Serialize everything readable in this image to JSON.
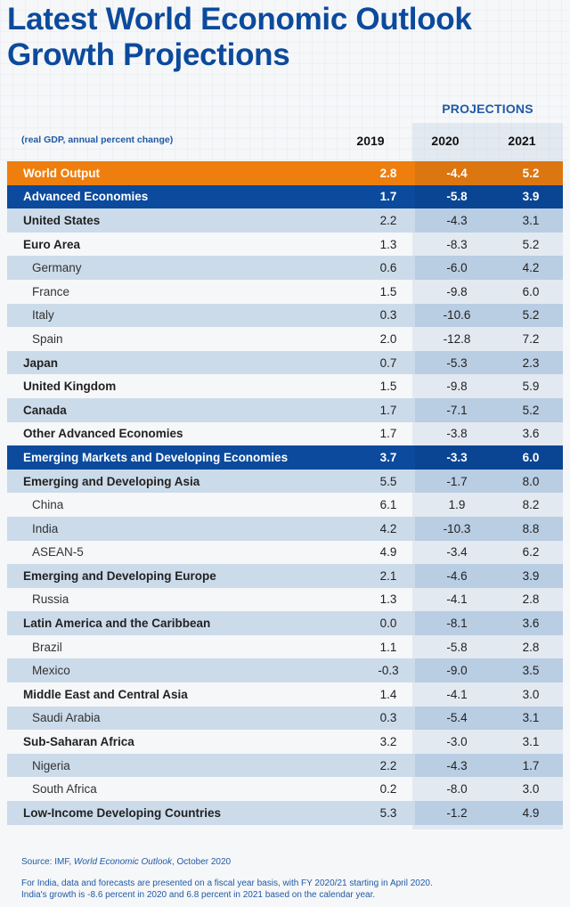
{
  "title_line1": "Latest World Economic Outlook",
  "title_line2": "Growth Projections",
  "projections_label": "PROJECTIONS",
  "units_label": "(real GDP, annual percent change)",
  "years": [
    "2019",
    "2020",
    "2021"
  ],
  "colors": {
    "orange": "#ee7f0e",
    "blue": "#0b4a9c",
    "band": "#ccdbea",
    "title": "#0b4a9c"
  },
  "footer": {
    "source_prefix": "Source: IMF, ",
    "source_title": "World Economic Outlook",
    "source_suffix": ", October 2020",
    "note_line1": "For India, data and forecasts are presented on a fiscal year basis, with FY 2020/21 starting in April 2020.",
    "note_line2": "India's growth is -8.6 percent in 2020 and 6.8 percent in 2021 based on the calendar year."
  },
  "chart_data": {
    "type": "table",
    "title": "Latest World Economic Outlook Growth Projections",
    "subtitle": "(real GDP, annual percent change)",
    "columns": [
      "",
      "2019",
      "2020",
      "2021"
    ],
    "column_group": {
      "label": "PROJECTIONS",
      "columns": [
        "2020",
        "2021"
      ]
    },
    "rows": [
      {
        "name": "World Output",
        "style": "orange",
        "values": [
          "2.8",
          "-4.4",
          "5.2"
        ]
      },
      {
        "name": "Advanced Economies",
        "style": "blue",
        "values": [
          "1.7",
          "-5.8",
          "3.9"
        ]
      },
      {
        "name": "United States",
        "style": "bold",
        "values": [
          "2.2",
          "-4.3",
          "3.1"
        ]
      },
      {
        "name": "Euro Area",
        "style": "bold",
        "values": [
          "1.3",
          "-8.3",
          "5.2"
        ]
      },
      {
        "name": "Germany",
        "style": "indent",
        "values": [
          "0.6",
          "-6.0",
          "4.2"
        ]
      },
      {
        "name": "France",
        "style": "indent",
        "values": [
          "1.5",
          "-9.8",
          "6.0"
        ]
      },
      {
        "name": "Italy",
        "style": "indent",
        "values": [
          "0.3",
          "-10.6",
          "5.2"
        ]
      },
      {
        "name": "Spain",
        "style": "indent",
        "values": [
          "2.0",
          "-12.8",
          "7.2"
        ]
      },
      {
        "name": "Japan",
        "style": "bold",
        "values": [
          "0.7",
          "-5.3",
          "2.3"
        ]
      },
      {
        "name": "United Kingdom",
        "style": "bold",
        "values": [
          "1.5",
          "-9.8",
          "5.9"
        ]
      },
      {
        "name": "Canada",
        "style": "bold",
        "values": [
          "1.7",
          "-7.1",
          "5.2"
        ]
      },
      {
        "name": "Other Advanced Economies",
        "style": "bold",
        "values": [
          "1.7",
          "-3.8",
          "3.6"
        ]
      },
      {
        "name": "Emerging Markets and Developing Economies",
        "style": "blue",
        "values": [
          "3.7",
          "-3.3",
          "6.0"
        ]
      },
      {
        "name": "Emerging and Developing Asia",
        "style": "bold",
        "values": [
          "5.5",
          "-1.7",
          "8.0"
        ]
      },
      {
        "name": "China",
        "style": "indent",
        "values": [
          "6.1",
          "1.9",
          "8.2"
        ]
      },
      {
        "name": "India",
        "style": "indent",
        "values": [
          "4.2",
          "-10.3",
          "8.8"
        ]
      },
      {
        "name": "ASEAN-5",
        "style": "indent",
        "values": [
          "4.9",
          "-3.4",
          "6.2"
        ]
      },
      {
        "name": "Emerging and Developing Europe",
        "style": "bold",
        "values": [
          "2.1",
          "-4.6",
          "3.9"
        ]
      },
      {
        "name": "Russia",
        "style": "indent",
        "values": [
          "1.3",
          "-4.1",
          "2.8"
        ]
      },
      {
        "name": "Latin America and the Caribbean",
        "style": "bold",
        "values": [
          "0.0",
          "-8.1",
          "3.6"
        ]
      },
      {
        "name": "Brazil",
        "style": "indent",
        "values": [
          "1.1",
          "-5.8",
          "2.8"
        ]
      },
      {
        "name": "Mexico",
        "style": "indent",
        "values": [
          "-0.3",
          "-9.0",
          "3.5"
        ]
      },
      {
        "name": "Middle East and Central Asia",
        "style": "bold",
        "values": [
          "1.4",
          "-4.1",
          "3.0"
        ]
      },
      {
        "name": "Saudi Arabia",
        "style": "indent",
        "values": [
          "0.3",
          "-5.4",
          "3.1"
        ]
      },
      {
        "name": "Sub-Saharan Africa",
        "style": "bold",
        "values": [
          "3.2",
          "-3.0",
          "3.1"
        ]
      },
      {
        "name": "Nigeria",
        "style": "indent",
        "values": [
          "2.2",
          "-4.3",
          "1.7"
        ]
      },
      {
        "name": "South Africa",
        "style": "indent",
        "values": [
          "0.2",
          "-8.0",
          "3.0"
        ]
      },
      {
        "name": "Low-Income Developing Countries",
        "style": "bold",
        "values": [
          "5.3",
          "-1.2",
          "4.9"
        ]
      }
    ]
  }
}
